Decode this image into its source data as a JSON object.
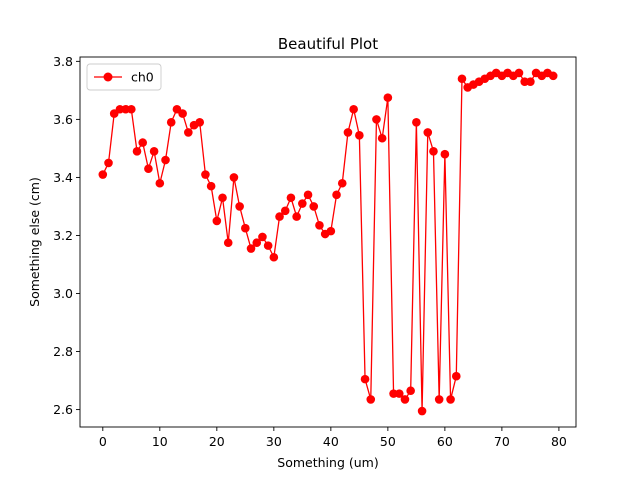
{
  "chart_data": {
    "type": "line",
    "title": "Beautiful Plot",
    "xlabel": "Something (um)",
    "ylabel": "Something else (cm)",
    "xlim": [
      -4,
      83
    ],
    "ylim": [
      2.54,
      3.815
    ],
    "xticks": [
      0,
      10,
      20,
      30,
      40,
      50,
      60,
      70,
      80
    ],
    "yticks": [
      2.6,
      2.8,
      3.0,
      3.2,
      3.4,
      3.6,
      3.8
    ],
    "xtick_labels": [
      "0",
      "10",
      "20",
      "30",
      "40",
      "50",
      "60",
      "70",
      "80"
    ],
    "ytick_labels": [
      "2.6",
      "2.8",
      "3.0",
      "3.2",
      "3.4",
      "3.6",
      "3.8"
    ],
    "grid": false,
    "legend_position": "top-left",
    "colors": {
      "series": "#ff0000",
      "axis": "#000000",
      "legend_border": "#cccccc"
    },
    "series": [
      {
        "name": "ch0",
        "marker": "circle",
        "x": [
          0,
          1,
          2,
          3,
          4,
          5,
          6,
          7,
          8,
          9,
          10,
          11,
          12,
          13,
          14,
          15,
          16,
          17,
          18,
          19,
          20,
          21,
          22,
          23,
          24,
          25,
          26,
          27,
          28,
          29,
          30,
          31,
          32,
          33,
          34,
          35,
          36,
          37,
          38,
          39,
          40,
          41,
          42,
          43,
          44,
          45,
          46,
          47,
          48,
          49,
          50,
          51,
          52,
          53,
          54,
          55,
          56,
          57,
          58,
          59,
          60,
          61,
          62,
          63,
          64,
          65,
          66,
          67,
          68,
          69,
          70,
          71,
          72,
          73,
          74,
          75,
          76,
          77,
          78,
          79
        ],
        "values": [
          3.41,
          3.45,
          3.62,
          3.635,
          3.635,
          3.635,
          3.49,
          3.52,
          3.43,
          3.49,
          3.38,
          3.46,
          3.59,
          3.635,
          3.62,
          3.555,
          3.58,
          3.59,
          3.41,
          3.37,
          3.25,
          3.33,
          3.175,
          3.4,
          3.3,
          3.225,
          3.155,
          3.175,
          3.195,
          3.165,
          3.125,
          3.265,
          3.285,
          3.33,
          3.265,
          3.31,
          3.34,
          3.3,
          3.235,
          3.205,
          3.215,
          3.34,
          3.38,
          3.555,
          3.635,
          3.545,
          2.705,
          2.635,
          3.6,
          3.535,
          3.675,
          2.655,
          2.655,
          2.635,
          2.665,
          3.59,
          2.595,
          3.555,
          3.49,
          2.635,
          3.48,
          2.635,
          2.715,
          3.74,
          3.71,
          3.72,
          3.73,
          3.74,
          3.75,
          3.76,
          3.75,
          3.76,
          3.75,
          3.76,
          3.73,
          3.73,
          3.76,
          3.75,
          3.76,
          3.75
        ]
      }
    ]
  }
}
